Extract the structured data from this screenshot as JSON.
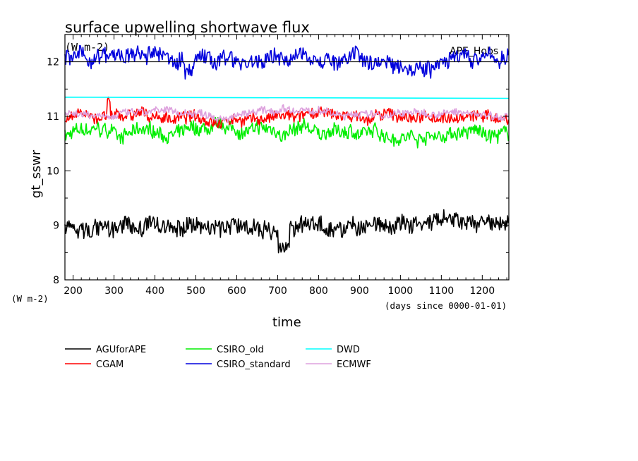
{
  "chart_data": {
    "type": "line",
    "title": "surface upwelling shortwave flux",
    "title_units": "(W m-2)",
    "annotation": "APE_Hobs",
    "xlabel": "time",
    "xlabel_units": "(days since 0000-01-01)",
    "ylabel": "gt_sswr",
    "ylabel_units": "(W m-2)",
    "xlim": [
      180,
      1265
    ],
    "ylim": [
      8,
      12.5
    ],
    "xticks": [
      200,
      300,
      400,
      500,
      600,
      700,
      800,
      900,
      1000,
      1100,
      1200
    ],
    "yticks": [
      8,
      9,
      10,
      11,
      12
    ],
    "grid": false,
    "legend_position": "bottom",
    "reference_line": 12.0,
    "x": [
      180,
      1265
    ],
    "series": [
      {
        "name": "AGUforAPE",
        "color": "#000000",
        "mean": 8.98,
        "noise": 0.14,
        "values": [
          8.98,
          8.98
        ]
      },
      {
        "name": "CGAM",
        "color": "#ff0000",
        "mean": 10.98,
        "noise": 0.09,
        "values": [
          10.98,
          10.98
        ]
      },
      {
        "name": "CSIRO_old",
        "color": "#00ee00",
        "mean": 10.68,
        "noise": 0.11,
        "values": [
          10.68,
          10.68
        ]
      },
      {
        "name": "CSIRO_standard",
        "color": "#0000dd",
        "mean": 12.05,
        "noise": 0.13,
        "values": [
          12.05,
          12.05
        ]
      },
      {
        "name": "DWD",
        "color": "#00ffff",
        "mean": 11.34,
        "noise": 0.0,
        "values": [
          11.35,
          11.33
        ]
      },
      {
        "name": "ECMWF",
        "color": "#dda0dd",
        "mean": 11.05,
        "noise": 0.06,
        "values": [
          11.05,
          11.05
        ]
      }
    ]
  }
}
